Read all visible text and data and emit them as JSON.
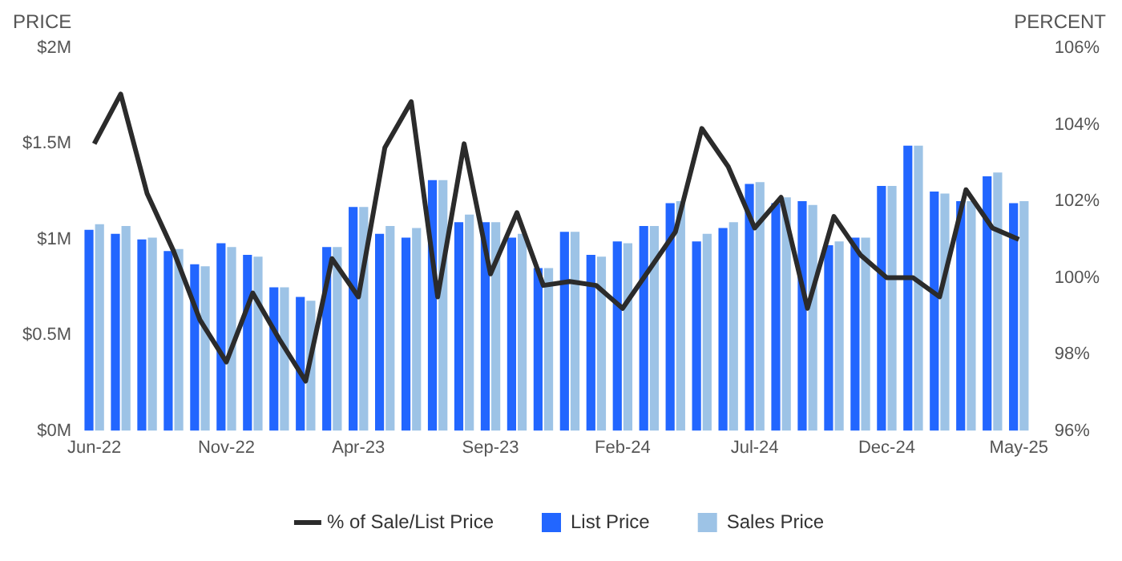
{
  "chart_data": {
    "type": "bar",
    "ylabel": "PRICE",
    "y2label": "PERCENT",
    "categories": [
      "Jun-22",
      null,
      null,
      null,
      null,
      "Nov-22",
      null,
      null,
      null,
      null,
      "Apr-23",
      null,
      null,
      null,
      null,
      "Sep-23",
      null,
      null,
      null,
      null,
      "Feb-24",
      null,
      null,
      null,
      null,
      "Jul-24",
      null,
      null,
      null,
      null,
      "Dec-24",
      null,
      null,
      null,
      null,
      "May-25"
    ],
    "series": [
      {
        "name": "% of Sale/List Price",
        "type": "line",
        "axis": "y2",
        "color": "#2b2b2b",
        "values": [
          103.5,
          104.8,
          102.2,
          100.7,
          98.9,
          97.8,
          99.6,
          98.4,
          97.3,
          100.5,
          99.5,
          103.4,
          104.6,
          99.5,
          103.5,
          100.1,
          101.7,
          99.8,
          99.9,
          99.8,
          99.2,
          100.2,
          101.2,
          103.9,
          102.9,
          101.3,
          102.1,
          99.2,
          101.6,
          100.6,
          100.0,
          100.0,
          99.5,
          102.3,
          101.3,
          101.0
        ]
      },
      {
        "name": "List Price",
        "color": "#2266ff",
        "values": [
          1.05,
          1.03,
          1.0,
          0.94,
          0.87,
          0.98,
          0.92,
          0.75,
          0.7,
          0.96,
          1.17,
          1.03,
          1.01,
          1.31,
          1.09,
          1.09,
          1.01,
          0.85,
          1.04,
          0.92,
          0.99,
          1.07,
          1.19,
          0.99,
          1.06,
          1.29,
          1.19,
          1.2,
          0.97,
          1.01,
          1.28,
          1.49,
          1.25,
          1.2,
          1.33,
          1.19
        ]
      },
      {
        "name": "Sales Price",
        "color": "#9dc3e6",
        "values": [
          1.08,
          1.07,
          1.01,
          0.95,
          0.86,
          0.96,
          0.91,
          0.75,
          0.68,
          0.96,
          1.17,
          1.07,
          1.06,
          1.31,
          1.13,
          1.09,
          1.03,
          0.85,
          1.04,
          0.91,
          0.98,
          1.07,
          1.2,
          1.03,
          1.09,
          1.3,
          1.22,
          1.18,
          0.99,
          1.01,
          1.28,
          1.49,
          1.24,
          1.2,
          1.35,
          1.2
        ]
      }
    ],
    "ylim": [
      0,
      2
    ],
    "yticks": [
      {
        "value": 0,
        "label": "$0M"
      },
      {
        "value": 0.5,
        "label": "$0.5M"
      },
      {
        "value": 1,
        "label": "$1M"
      },
      {
        "value": 1.5,
        "label": "$1.5M"
      },
      {
        "value": 2,
        "label": "$2M"
      }
    ],
    "y2lim": [
      96,
      106
    ],
    "y2ticks": [
      {
        "value": 96,
        "label": "96%"
      },
      {
        "value": 98,
        "label": "98%"
      },
      {
        "value": 100,
        "label": "100%"
      },
      {
        "value": 102,
        "label": "102%"
      },
      {
        "value": 104,
        "label": "104%"
      },
      {
        "value": 106,
        "label": "106%"
      }
    ],
    "grid": false,
    "legend": "bottom",
    "line_style": "solid",
    "marker": "none"
  }
}
